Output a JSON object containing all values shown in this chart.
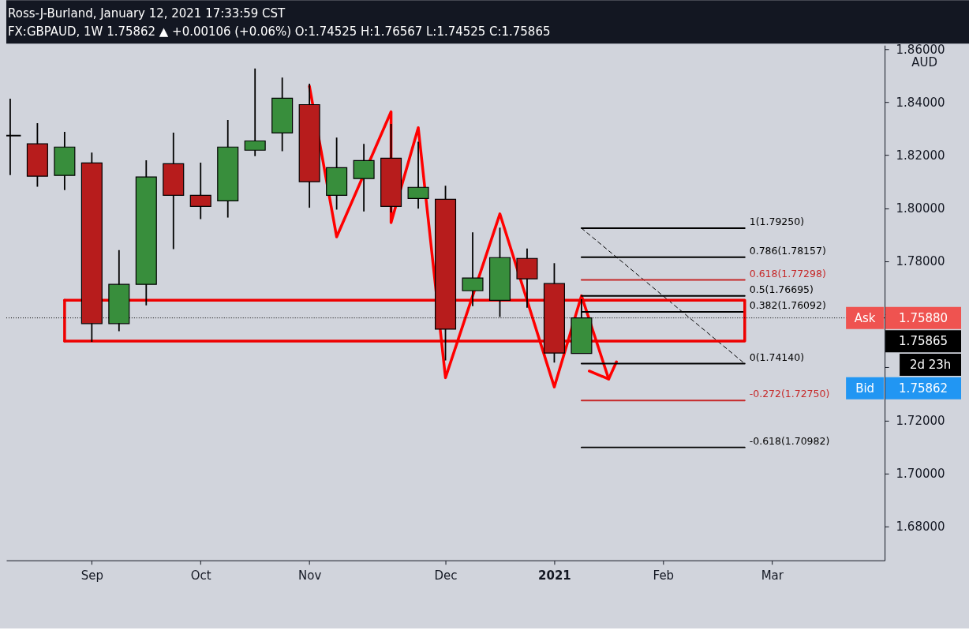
{
  "chart_data": {
    "type": "candlestick",
    "title": "Ross-J-Burland, January 12, 2021 17:33:59 CST",
    "subtitle": "FX:GBPAUD, 1W 1.75862 ▲ +0.00106 (+0.06%) O:1.74525 H:1.76567 L:1.74525 C:1.75865",
    "ylabel": "AUD",
    "x": [
      "2020-08-17",
      "2020-08-24",
      "2020-08-31",
      "2020-09-07",
      "2020-09-14",
      "2020-09-21",
      "2020-09-28",
      "2020-10-05",
      "2020-10-12",
      "2020-10-19",
      "2020-10-26",
      "2020-11-02",
      "2020-11-09",
      "2020-11-16",
      "2020-11-23",
      "2020-11-30",
      "2020-12-07",
      "2020-12-14",
      "2020-12-21",
      "2020-12-28",
      "2021-01-04",
      "2021-01-11"
    ],
    "ohlc": [
      [
        1.8273,
        1.8413,
        1.8125,
        1.8275
      ],
      [
        1.8243,
        1.8321,
        1.8081,
        1.8121
      ],
      [
        1.8124,
        1.8288,
        1.8069,
        1.8231
      ],
      [
        1.8171,
        1.821,
        1.7496,
        1.7565
      ],
      [
        1.7565,
        1.7842,
        1.7536,
        1.7713
      ],
      [
        1.7713,
        1.8181,
        1.7634,
        1.8118
      ],
      [
        1.8168,
        1.8285,
        1.7846,
        1.8049
      ],
      [
        1.8049,
        1.8172,
        1.7959,
        1.8007
      ],
      [
        1.8028,
        1.8333,
        1.7965,
        1.8231
      ],
      [
        1.8219,
        1.8527,
        1.8197,
        1.8254
      ],
      [
        1.8284,
        1.8493,
        1.8215,
        1.8415
      ],
      [
        1.8391,
        1.847,
        1.8002,
        1.81
      ],
      [
        1.8049,
        1.8267,
        1.7995,
        1.8153
      ],
      [
        1.8112,
        1.8243,
        1.7988,
        1.818
      ],
      [
        1.8189,
        1.8318,
        1.7984,
        1.8007
      ],
      [
        1.8037,
        1.8251,
        1.7999,
        1.8079
      ],
      [
        1.8034,
        1.8085,
        1.7426,
        1.7544
      ],
      [
        1.7689,
        1.7909,
        1.7631,
        1.7737
      ],
      [
        1.7653,
        1.7927,
        1.759,
        1.7814
      ],
      [
        1.7811,
        1.7848,
        1.7625,
        1.7734
      ],
      [
        1.7716,
        1.7793,
        1.7418,
        1.7454
      ],
      [
        1.74525,
        1.76567,
        1.74525,
        1.75865
      ]
    ],
    "colors": [
      "#388e3c",
      "#b71c1c",
      "#388e3c",
      "#b71c1c",
      "#388e3c",
      "#388e3c",
      "#b71c1c",
      "#b71c1c",
      "#388e3c",
      "#388e3c",
      "#388e3c",
      "#b71c1c",
      "#388e3c",
      "#388e3c",
      "#b71c1c",
      "#388e3c",
      "#b71c1c",
      "#388e3c",
      "#388e3c",
      "#b71c1c",
      "#b71c1c",
      "#388e3c"
    ],
    "series": [
      {
        "type": "line",
        "x": [
          "2020-11-02",
          "2020-11-09",
          "2020-11-23",
          "2020-11-23",
          "2020-11-30",
          "2020-12-07",
          "2020-12-21",
          "2021-01-04",
          "2021-01-11",
          "2021-01-18"
        ],
        "values": [
          1.846,
          1.7892,
          1.8364,
          1.7946,
          1.8304,
          1.7361,
          1.7979,
          1.7326,
          1.767,
          1.7356
        ],
        "color": "#ff0000"
      },
      {
        "type": "line",
        "x": [
          "2021-01-13",
          "2021-01-18",
          "2021-01-20"
        ],
        "values": [
          1.7386,
          1.7356,
          1.7421
        ],
        "color": "#ff0000"
      },
      {
        "type": "line",
        "x": [
          "2021-01-11",
          "2021-02-22"
        ],
        "values": [
          1.7925,
          1.7414
        ],
        "color": "#000000",
        "line_style": "dashed"
      },
      {
        "type": "line",
        "name": "1(1.79250)",
        "x": [
          "2021-01-11",
          "2021-02-22"
        ],
        "values": [
          1.7925,
          1.7925
        ],
        "color": "#000000"
      },
      {
        "type": "line",
        "name": "0.786(1.78157)",
        "x": [
          "2021-01-11",
          "2021-02-22"
        ],
        "values": [
          1.78157,
          1.78157
        ],
        "color": "#000000"
      },
      {
        "type": "line",
        "name": "0.618(1.77298)",
        "x": [
          "2021-01-11",
          "2021-02-22"
        ],
        "values": [
          1.77298,
          1.77298
        ],
        "color": "#c62828"
      },
      {
        "type": "line",
        "name": "0.5(1.76695)",
        "x": [
          "2021-01-11",
          "2021-02-22"
        ],
        "values": [
          1.76695,
          1.76695
        ],
        "color": "#000000"
      },
      {
        "type": "line",
        "name": "0.382(1.76092)",
        "x": [
          "2021-01-11",
          "2021-02-22"
        ],
        "values": [
          1.76092,
          1.76092
        ],
        "color": "#000000"
      },
      {
        "type": "line",
        "name": "0(1.74140)",
        "x": [
          "2021-01-11",
          "2021-02-22"
        ],
        "values": [
          1.7414,
          1.7414
        ],
        "color": "#000000"
      },
      {
        "type": "line",
        "name": "-0.272(1.72750)",
        "x": [
          "2021-01-11",
          "2021-02-22"
        ],
        "values": [
          1.7275,
          1.7275
        ],
        "color": "#c62828"
      },
      {
        "type": "line",
        "name": "-0.618(1.70982)",
        "x": [
          "2021-01-11",
          "2021-02-22"
        ],
        "values": [
          1.70982,
          1.70982
        ],
        "color": "#000000"
      },
      {
        "type": "line",
        "x": [
          "2020-08-31",
          "2021-02-22",
          "2021-02-22",
          "2020-08-31"
        ],
        "values": [
          1.7653,
          1.7653,
          1.7499,
          1.7499
        ],
        "color": "#ee0000"
      },
      {
        "type": "line",
        "x": [
          "2020-08-31",
          "2020-08-31"
        ],
        "values": [
          1.7499,
          1.7653
        ],
        "color": "#ee0000"
      }
    ],
    "ref_lines": [
      {
        "axis": "y",
        "value": 1.75865,
        "label": "1.75865",
        "color": "#000000",
        "line_style": "dotted"
      }
    ],
    "annotations": [
      "Ask",
      "1.75880",
      "2d 23h",
      "Bid",
      "1.75862"
    ],
    "xlim": [
      "2020-08-16",
      "2021-03-30"
    ],
    "xticks": [
      {
        "value": "2020-09-07",
        "label": "Sep"
      },
      {
        "value": "2020-10-05",
        "label": "Oct"
      },
      {
        "value": "2020-11-02",
        "label": "Nov"
      },
      {
        "value": "2020-12-07",
        "label": "Dec"
      },
      {
        "value": "2021-01-04",
        "label": "2021"
      },
      {
        "value": "2021-02-01",
        "label": "Feb"
      },
      {
        "value": "2021-03-01",
        "label": "Mar"
      }
    ],
    "ylim": [
      1.6672,
      1.8615
    ],
    "yticks": [
      {
        "value": 1.68,
        "label": "1.68000"
      },
      {
        "value": 1.7,
        "label": "1.70000"
      },
      {
        "value": 1.72,
        "label": "1.72000"
      },
      {
        "value": 1.74,
        "label": null
      },
      {
        "value": 1.76,
        "label": null
      },
      {
        "value": 1.78,
        "label": "1.78000"
      },
      {
        "value": 1.8,
        "label": "1.80000"
      },
      {
        "value": 1.82,
        "label": "1.82000"
      },
      {
        "value": 1.84,
        "label": "1.84000"
      },
      {
        "value": 1.86,
        "label": "1.86000"
      }
    ]
  }
}
